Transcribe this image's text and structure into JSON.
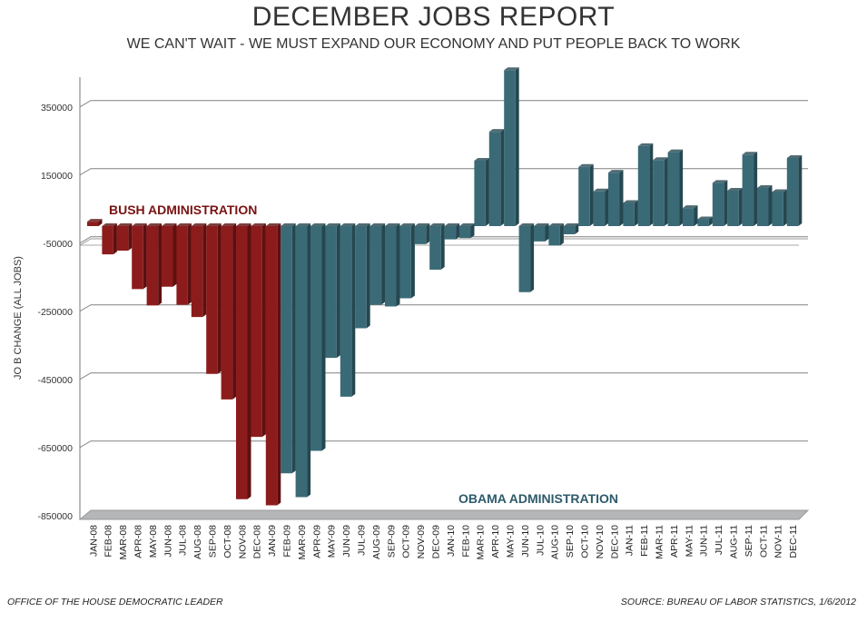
{
  "title": "DECEMBER JOBS REPORT",
  "subtitle": "WE CAN'T WAIT - WE MUST EXPAND OUR ECONOMY AND PUT PEOPLE BACK TO WORK",
  "footer_left": "OFFICE OF THE HOUSE DEMOCRATIC LEADER",
  "footer_right": "SOURCE: BUREAU OF LABOR STATISTICS, 1/6/2012",
  "chart_data": {
    "type": "bar",
    "title": "DECEMBER JOBS REPORT",
    "ylabel": "JO B CHANGE (ALL JOBS)",
    "xlabel": "",
    "ylim": [
      -850000,
      450000
    ],
    "yticks": [
      350000,
      150000,
      -50000,
      -250000,
      -450000,
      -650000,
      -850000
    ],
    "ytick_labels": [
      "350000",
      "150000",
      "-50000",
      "-250000",
      "-450000",
      "-650000",
      "-850000"
    ],
    "grid": true,
    "three_d": true,
    "categories": [
      "JAN-08",
      "FEB-08",
      "MAR-08",
      "APR-08",
      "MAY-08",
      "JUN-08",
      "JUL-08",
      "AUG-08",
      "SEP-08",
      "OCT-08",
      "NOV-08",
      "DEC-08",
      "JAN-09",
      "FEB-09",
      "MAR-09",
      "APR-09",
      "MAY-09",
      "JUN-09",
      "JUL-09",
      "AUG-09",
      "SEP-09",
      "OCT-09",
      "NOV-09",
      "DEC-09",
      "JAN-10",
      "FEB-10",
      "MAR-10",
      "APR-10",
      "MAY-10",
      "JUN-10",
      "JUL-10",
      "AUG-10",
      "SEP-10",
      "OCT-10",
      "NOV-10",
      "DEC-10",
      "JAN-11",
      "FEB-11",
      "MAR-11",
      "APR-11",
      "MAY-11",
      "JUN-11",
      "JUL-11",
      "AUG-11",
      "SEP-11",
      "OCT-11",
      "NOV-11",
      "DEC-11"
    ],
    "values": [
      13000,
      -83000,
      -72000,
      -185000,
      -233000,
      -178000,
      -231000,
      -267000,
      -434000,
      -509000,
      -802000,
      -619000,
      -820000,
      -726000,
      -796000,
      -660000,
      -387000,
      -501000,
      -300000,
      -231000,
      -236000,
      -212000,
      -53000,
      -128000,
      -39000,
      -35000,
      192000,
      277000,
      458000,
      -194000,
      -45000,
      -57000,
      -24000,
      174000,
      102000,
      157000,
      68000,
      235000,
      194000,
      217000,
      53000,
      20000,
      127000,
      104000,
      210000,
      112000,
      100000,
      200000
    ],
    "groups": [
      {
        "label": "BUSH ADMINISTRATION",
        "first": "JAN-08",
        "last": "JAN-09",
        "color": "#8c1c1c"
      },
      {
        "label": "OBAMA ADMINISTRATION",
        "first": "FEB-09",
        "last": "DEC-11",
        "color": "#3b6a77"
      }
    ],
    "label_colors": {
      "bush": "#7a1212",
      "obama": "#2e5b6b"
    }
  }
}
